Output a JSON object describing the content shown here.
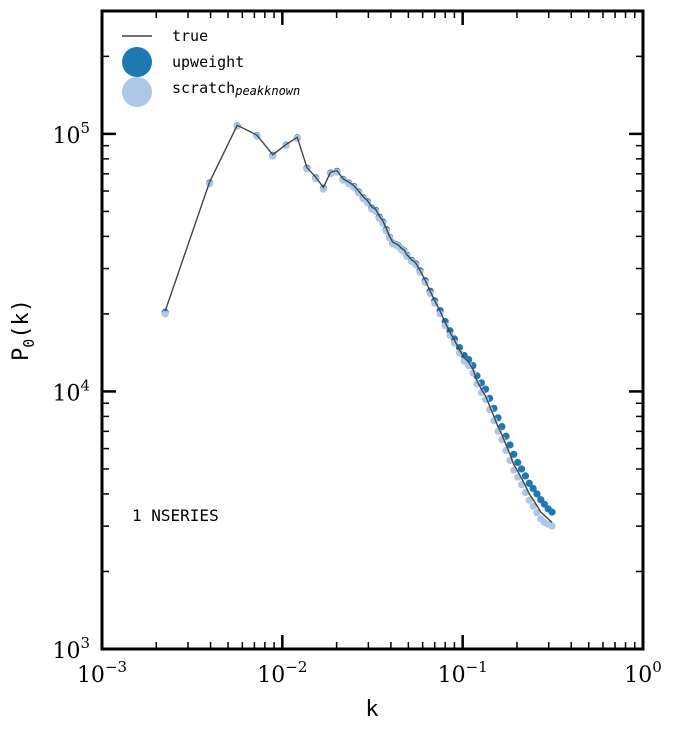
{
  "chart_data": {
    "type": "scatter",
    "title": "",
    "xlabel": "k",
    "ylabel": "P",
    "ylabel_sub": "0",
    "ylabel_paren": "(k)",
    "xscale": "log",
    "yscale": "log",
    "xlim": [
      0.001,
      1
    ],
    "ylim": [
      1000,
      300000
    ],
    "grid": false,
    "legend_position": "top-left",
    "x_ticks": [
      {
        "base": "10",
        "exp": "−3",
        "value": 0.001
      },
      {
        "base": "10",
        "exp": "−2",
        "value": 0.01
      },
      {
        "base": "10",
        "exp": "−1",
        "value": 0.1
      },
      {
        "base": "10",
        "exp": "0",
        "value": 1
      }
    ],
    "y_ticks": [
      {
        "base": "10",
        "exp": "3",
        "value": 1000
      },
      {
        "base": "10",
        "exp": "4",
        "value": 10000
      },
      {
        "base": "10",
        "exp": "5",
        "value": 100000
      }
    ],
    "annotation": "1 NSERIES",
    "series": [
      {
        "name": "true",
        "kind": "line",
        "color": "#444444",
        "x": [
          0.00224,
          0.00395,
          0.00562,
          0.00722,
          0.00885,
          0.0105,
          0.0121,
          0.0137,
          0.0153,
          0.0169,
          0.0185,
          0.0201,
          0.0217,
          0.0233,
          0.0249,
          0.0265,
          0.0281,
          0.0297,
          0.0313,
          0.0329,
          0.0345,
          0.0361,
          0.0377,
          0.0393,
          0.0409,
          0.0425,
          0.0441,
          0.0457,
          0.0473,
          0.049,
          0.052,
          0.055,
          0.058,
          0.062,
          0.066,
          0.07,
          0.075,
          0.08,
          0.085,
          0.09,
          0.096,
          0.102,
          0.108,
          0.114,
          0.12,
          0.127,
          0.134,
          0.141,
          0.149,
          0.157,
          0.165,
          0.174,
          0.183,
          0.192,
          0.202,
          0.212,
          0.223,
          0.234,
          0.246,
          0.258,
          0.271,
          0.284,
          0.298,
          0.313
        ],
        "y": [
          20500,
          65000,
          108000,
          99000,
          83000,
          91000,
          97000,
          74000,
          68000,
          62000,
          71000,
          72000,
          67000,
          65000,
          63000,
          60000,
          57000,
          55000,
          52000,
          51000,
          48000,
          46000,
          43000,
          40000,
          38000,
          37500,
          37000,
          36000,
          35500,
          34000,
          32500,
          31500,
          29500,
          27000,
          24500,
          22500,
          20500,
          18500,
          17000,
          15800,
          14500,
          13500,
          13000,
          12200,
          11000,
          10200,
          9600,
          8800,
          8000,
          7300,
          6800,
          6200,
          5700,
          5200,
          4900,
          4600,
          4300,
          4000,
          3800,
          3600,
          3400,
          3300,
          3200,
          3100
        ]
      },
      {
        "name": "upweight",
        "kind": "scatter",
        "color": "#1f77b4",
        "x": [
          0.00224,
          0.00395,
          0.00562,
          0.00722,
          0.00885,
          0.0105,
          0.0121,
          0.0137,
          0.0153,
          0.0169,
          0.0185,
          0.0201,
          0.0217,
          0.0233,
          0.0249,
          0.0265,
          0.0281,
          0.0297,
          0.0313,
          0.0329,
          0.0345,
          0.0361,
          0.0377,
          0.0393,
          0.0409,
          0.0425,
          0.0441,
          0.0457,
          0.0473,
          0.049,
          0.052,
          0.055,
          0.058,
          0.062,
          0.066,
          0.07,
          0.075,
          0.08,
          0.085,
          0.09,
          0.096,
          0.102,
          0.108,
          0.114,
          0.12,
          0.127,
          0.134,
          0.141,
          0.149,
          0.157,
          0.165,
          0.174,
          0.183,
          0.192,
          0.202,
          0.212,
          0.223,
          0.234,
          0.246,
          0.258,
          0.271,
          0.284,
          0.298,
          0.313
        ],
        "y": [
          20300,
          64500,
          107500,
          98500,
          82500,
          90500,
          96500,
          73500,
          67500,
          61500,
          70500,
          71500,
          66500,
          64500,
          62500,
          59500,
          56500,
          54500,
          51500,
          50500,
          47500,
          45500,
          42500,
          39700,
          37700,
          37200,
          36700,
          35700,
          35200,
          33800,
          32300,
          31300,
          29400,
          26900,
          24500,
          22500,
          20600,
          18700,
          17200,
          16000,
          14800,
          13800,
          13300,
          12600,
          11500,
          10800,
          10200,
          9400,
          8600,
          7900,
          7300,
          6700,
          6200,
          5700,
          5300,
          5000,
          4700,
          4400,
          4200,
          4000,
          3800,
          3650,
          3500,
          3400
        ]
      },
      {
        "name": "scratch",
        "name_sub": "peakknown",
        "kind": "scatter",
        "color": "#aec7e8",
        "x": [
          0.00224,
          0.00395,
          0.00562,
          0.00722,
          0.00885,
          0.0105,
          0.0121,
          0.0137,
          0.0153,
          0.0169,
          0.0185,
          0.0201,
          0.0217,
          0.0233,
          0.0249,
          0.0265,
          0.0281,
          0.0297,
          0.0313,
          0.0329,
          0.0345,
          0.0361,
          0.0377,
          0.0393,
          0.0409,
          0.0425,
          0.0441,
          0.0457,
          0.0473,
          0.049,
          0.052,
          0.055,
          0.058,
          0.062,
          0.066,
          0.07,
          0.075,
          0.08,
          0.085,
          0.09,
          0.096,
          0.102,
          0.108,
          0.114,
          0.12,
          0.127,
          0.134,
          0.141,
          0.149,
          0.157,
          0.165,
          0.174,
          0.183,
          0.192,
          0.202,
          0.212,
          0.223,
          0.234,
          0.246,
          0.258,
          0.271,
          0.284,
          0.298,
          0.313
        ],
        "y": [
          20000,
          64000,
          107000,
          98000,
          82000,
          90000,
          96000,
          73000,
          67000,
          61000,
          70000,
          71000,
          66000,
          64000,
          62000,
          59000,
          56000,
          54000,
          51000,
          50000,
          47000,
          45000,
          42000,
          39500,
          37500,
          37000,
          36500,
          35500,
          35000,
          33500,
          32000,
          31000,
          29000,
          26500,
          24000,
          22000,
          20000,
          18000,
          16500,
          15400,
          14100,
          13100,
          12600,
          11800,
          10700,
          9900,
          9300,
          8500,
          7700,
          7000,
          6500,
          5900,
          5400,
          4950,
          4650,
          4350,
          4050,
          3780,
          3580,
          3380,
          3200,
          3100,
          3050,
          3000
        ]
      }
    ]
  }
}
